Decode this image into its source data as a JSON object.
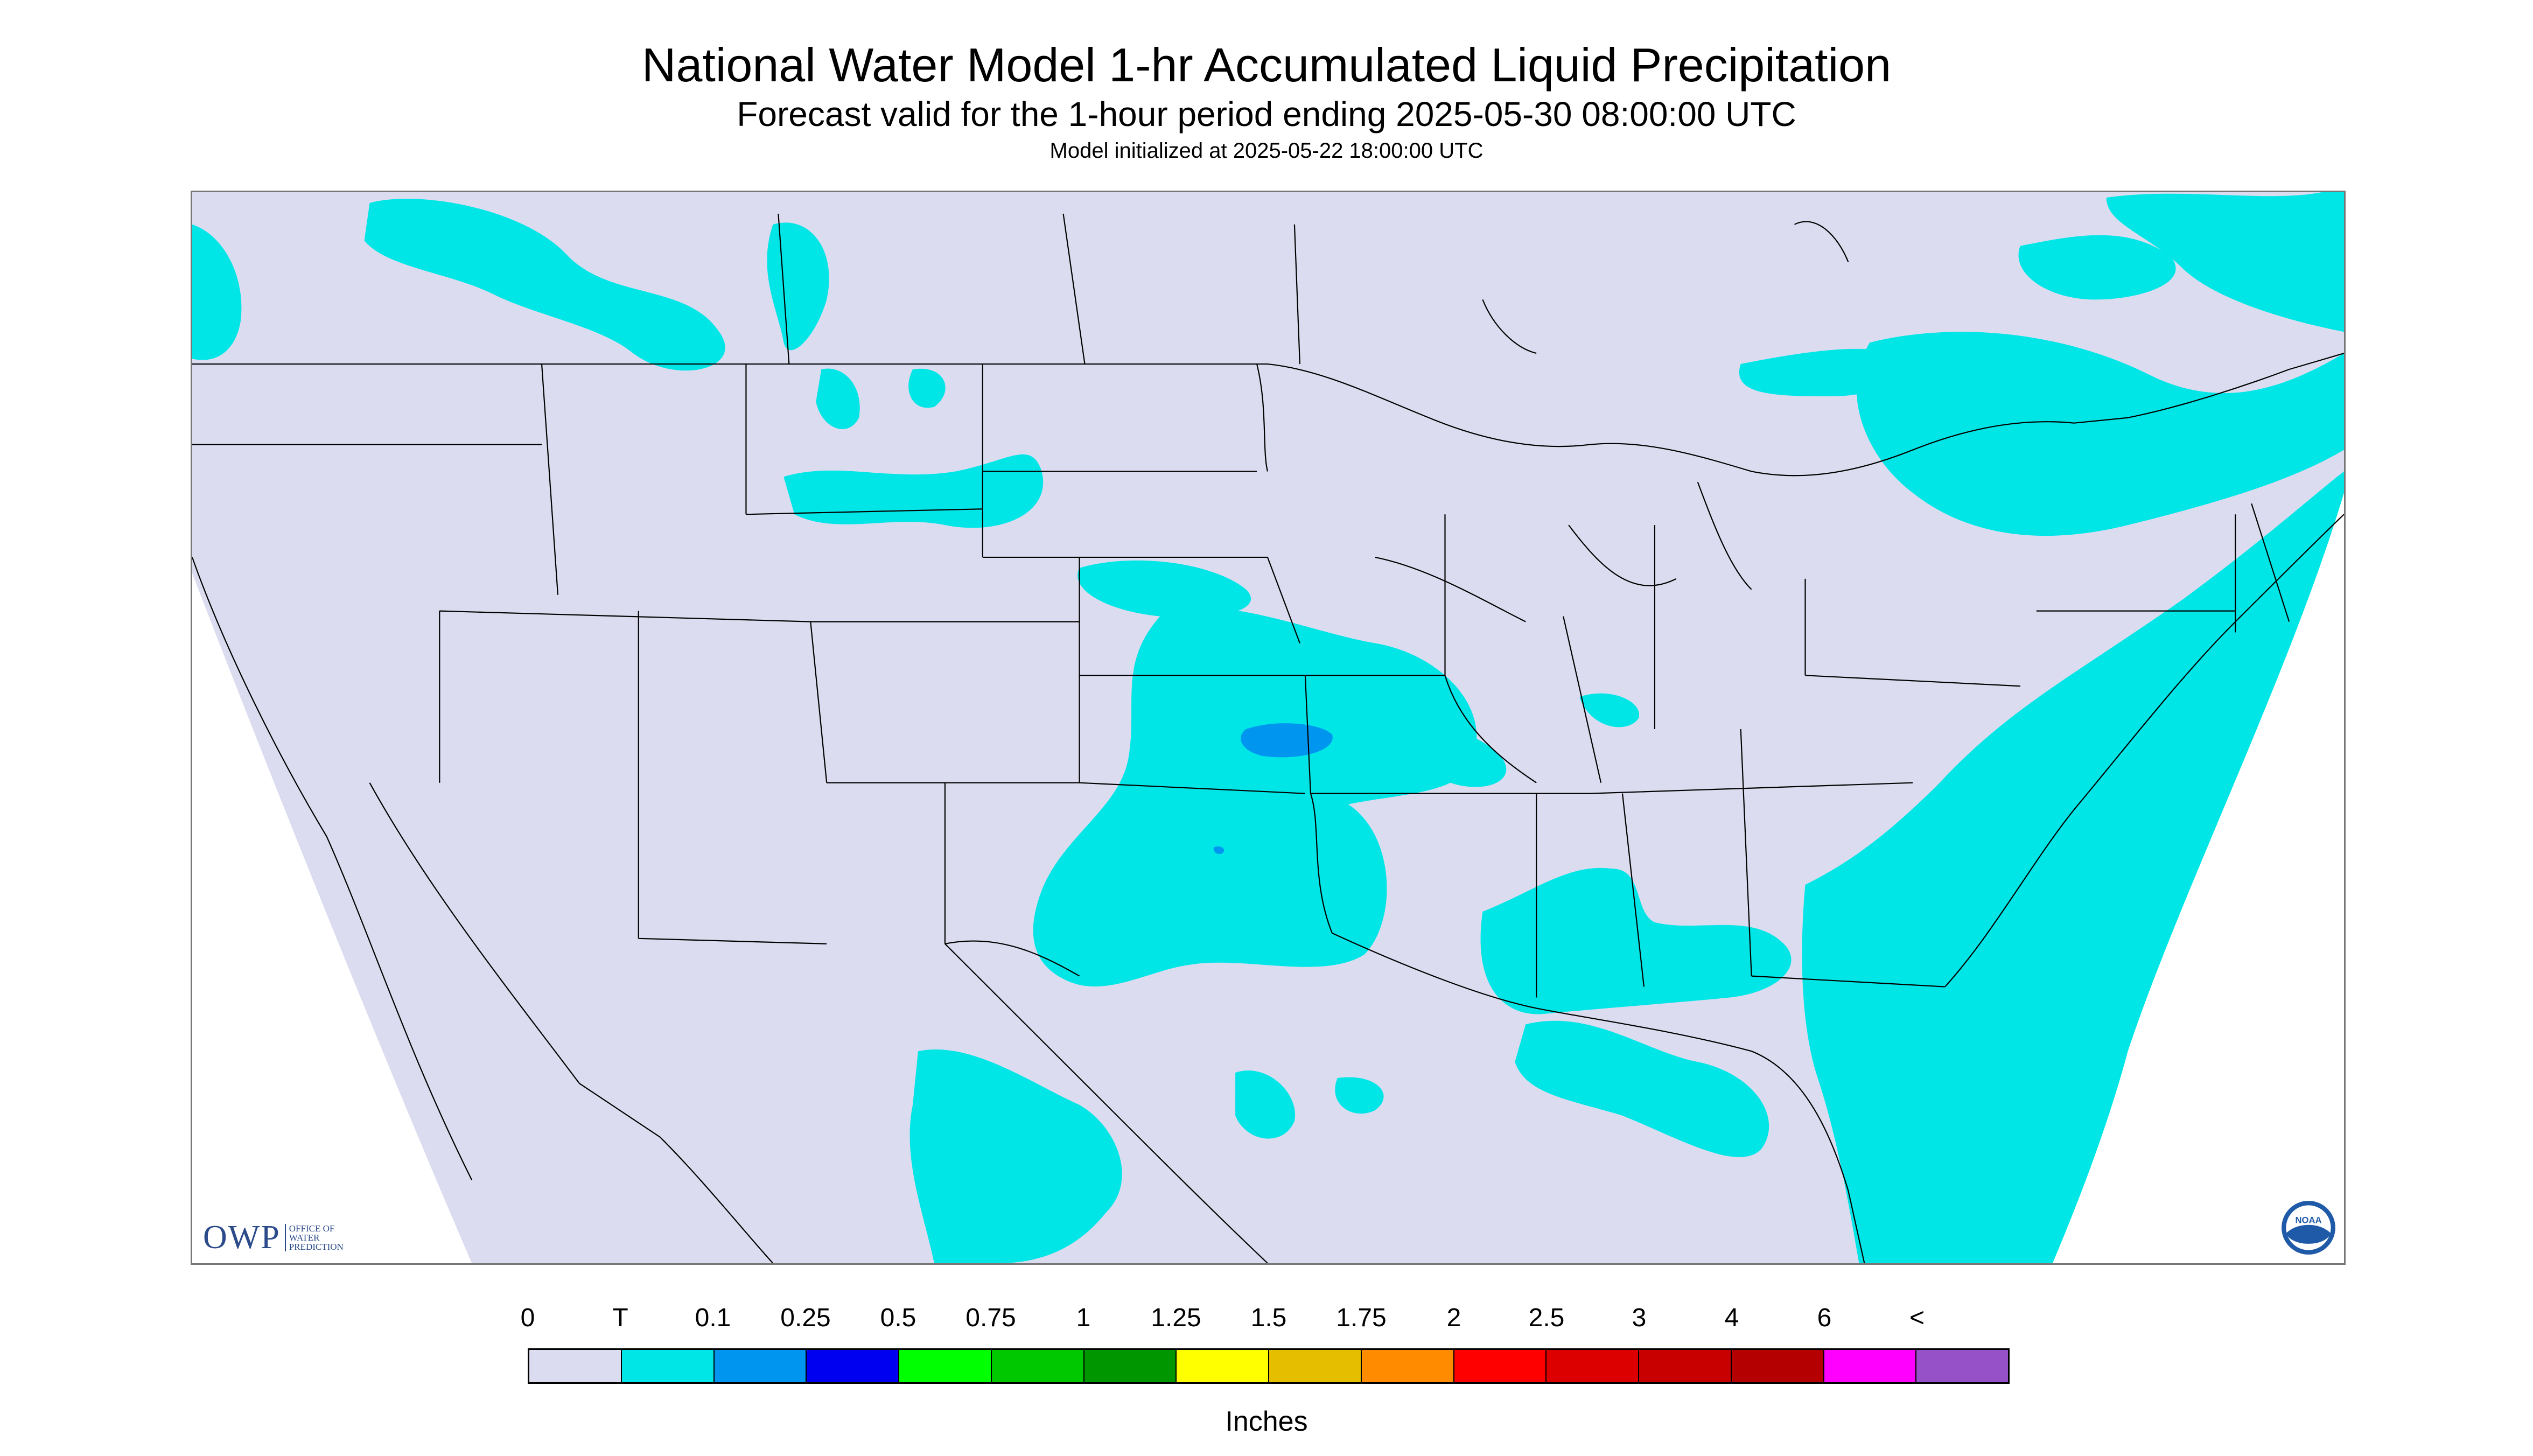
{
  "title": "National Water Model 1-hr Accumulated Liquid Precipitation",
  "subtitle": "Forecast valid for the 1-hour period ending 2025-05-30 08:00:00 UTC",
  "init_line": "Model initialized at 2025-05-22 18:00:00 UTC",
  "logos": {
    "owp_wordmark": "OWP",
    "owp_subtext": "OFFICE OF WATER PREDICTION",
    "noaa_text": "NOAA"
  },
  "legend": {
    "labels": [
      "0",
      "T",
      "0.1",
      "0.25",
      "0.5",
      "0.75",
      "1",
      "1.25",
      "1.5",
      "1.75",
      "2",
      "2.5",
      "3",
      "4",
      "6",
      "<"
    ],
    "colors": [
      "#dcdcf0",
      "#00e6e6",
      "#0096f0",
      "#0000f0",
      "#00ff00",
      "#00c800",
      "#009600",
      "#ffff00",
      "#e6be00",
      "#ff8c00",
      "#ff0000",
      "#dc0000",
      "#c80000",
      "#b40000",
      "#ff00ff",
      "#9650c8"
    ],
    "units": "Inches"
  },
  "colors": {
    "background_domain": "#dcdcf0",
    "outside_domain": "#ffffff",
    "trace": "#00e6e6",
    "light": "#0096f0",
    "boundaries": "#000000"
  }
}
